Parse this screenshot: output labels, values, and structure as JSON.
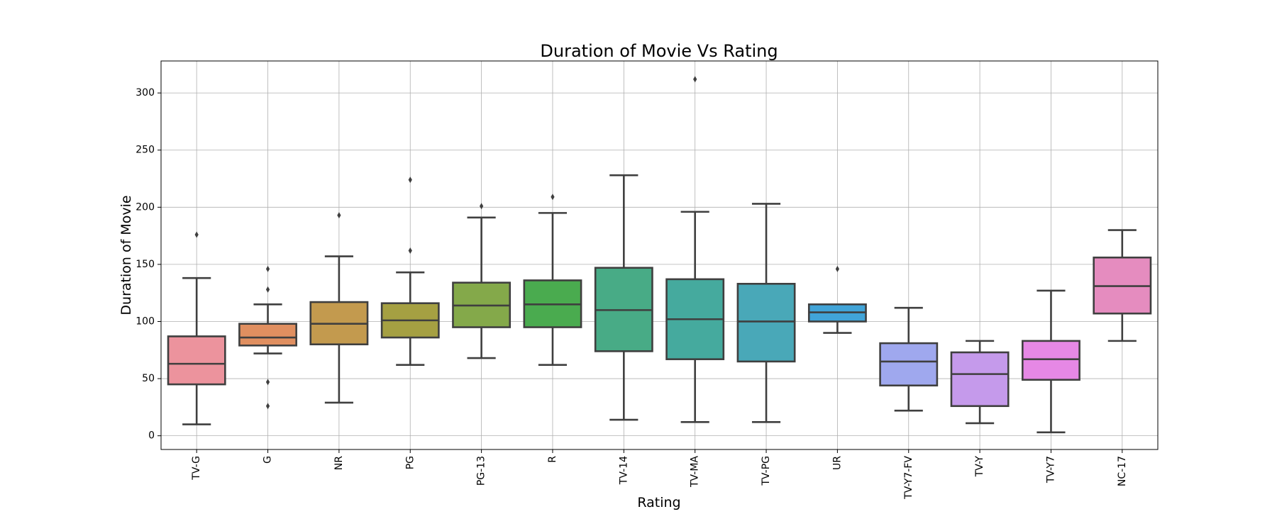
{
  "chart_data": {
    "type": "box",
    "title": "Duration of Movie Vs Rating",
    "xlabel": "Rating",
    "ylabel": "Duration of Movie",
    "ylim": [
      -12,
      328
    ],
    "yticks": [
      0,
      50,
      100,
      150,
      200,
      250,
      300
    ],
    "grid": true,
    "legend": "none",
    "categories": [
      "TV-G",
      "G",
      "NR",
      "PG",
      "PG-13",
      "R",
      "TV-14",
      "TV-MA",
      "TV-PG",
      "UR",
      "TV-Y7-FV",
      "TV-Y",
      "TV-Y7",
      "NC-17"
    ],
    "colors": [
      "#ec939d",
      "#e08f60",
      "#c39a4e",
      "#a5a042",
      "#84a94a",
      "#4aab4f",
      "#48ab86",
      "#45aa9e",
      "#49a8b8",
      "#41a4d8",
      "#9fa8ee",
      "#c59aeb",
      "#e688e5",
      "#e58cbf"
    ],
    "boxes": [
      {
        "category": "TV-G",
        "whisker_low": 10,
        "q1": 45,
        "median": 63,
        "q3": 87,
        "whisker_high": 138,
        "outliers": [
          176
        ]
      },
      {
        "category": "G",
        "whisker_low": 72,
        "q1": 79,
        "median": 86,
        "q3": 98,
        "whisker_high": 115,
        "outliers": [
          26,
          47,
          128,
          146
        ]
      },
      {
        "category": "NR",
        "whisker_low": 29,
        "q1": 80,
        "median": 98,
        "q3": 117,
        "whisker_high": 157,
        "outliers": [
          193
        ]
      },
      {
        "category": "PG",
        "whisker_low": 62,
        "q1": 86,
        "median": 101,
        "q3": 116,
        "whisker_high": 143,
        "outliers": [
          162,
          224
        ]
      },
      {
        "category": "PG-13",
        "whisker_low": 68,
        "q1": 95,
        "median": 114,
        "q3": 134,
        "whisker_high": 191,
        "outliers": [
          201
        ]
      },
      {
        "category": "R",
        "whisker_low": 62,
        "q1": 95,
        "median": 115,
        "q3": 136,
        "whisker_high": 195,
        "outliers": [
          209
        ]
      },
      {
        "category": "TV-14",
        "whisker_low": 14,
        "q1": 74,
        "median": 110,
        "q3": 147,
        "whisker_high": 228,
        "outliers": []
      },
      {
        "category": "TV-MA",
        "whisker_low": 12,
        "q1": 67,
        "median": 102,
        "q3": 137,
        "whisker_high": 196,
        "outliers": [
          312
        ]
      },
      {
        "category": "TV-PG",
        "whisker_low": 12,
        "q1": 65,
        "median": 100,
        "q3": 133,
        "whisker_high": 203,
        "outliers": []
      },
      {
        "category": "UR",
        "whisker_low": 90,
        "q1": 100,
        "median": 108,
        "q3": 115,
        "whisker_high": 115,
        "outliers": [
          146
        ]
      },
      {
        "category": "TV-Y7-FV",
        "whisker_low": 22,
        "q1": 44,
        "median": 65,
        "q3": 81,
        "whisker_high": 112,
        "outliers": []
      },
      {
        "category": "TV-Y",
        "whisker_low": 11,
        "q1": 26,
        "median": 54,
        "q3": 73,
        "whisker_high": 83,
        "outliers": []
      },
      {
        "category": "TV-Y7",
        "whisker_low": 3,
        "q1": 49,
        "median": 67,
        "q3": 83,
        "whisker_high": 127,
        "outliers": []
      },
      {
        "category": "NC-17",
        "whisker_low": 83,
        "q1": 107,
        "median": 131,
        "q3": 156,
        "whisker_high": 180,
        "outliers": []
      }
    ]
  }
}
